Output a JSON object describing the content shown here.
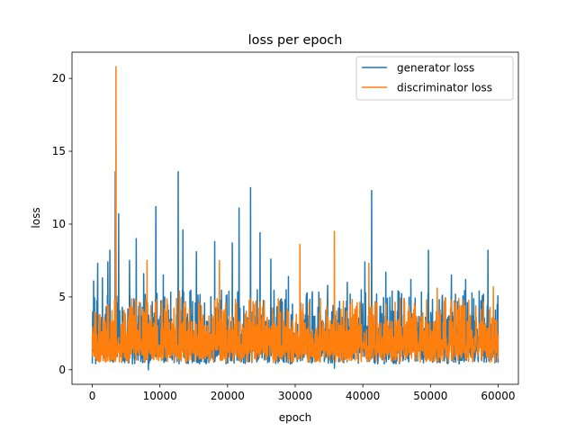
{
  "chart_data": {
    "type": "line",
    "title": "loss per epoch",
    "xlabel": "epoch",
    "ylabel": "loss",
    "xlim": [
      -3000,
      63000
    ],
    "ylim": [
      -1.0,
      21.8
    ],
    "xticks": [
      0,
      10000,
      20000,
      30000,
      40000,
      50000,
      60000
    ],
    "yticks": [
      0,
      5,
      10,
      15,
      20
    ],
    "legend_position": "top-right",
    "grid": false,
    "series": [
      {
        "name": "generator loss",
        "color": "#1f77b4",
        "base_range": [
          0.4,
          3.8
        ],
        "peaks": [
          {
            "x": 200,
            "y": 6.1
          },
          {
            "x": 800,
            "y": 7.3
          },
          {
            "x": 1500,
            "y": 6.3
          },
          {
            "x": 2300,
            "y": 7.4
          },
          {
            "x": 2600,
            "y": 8.2
          },
          {
            "x": 3400,
            "y": 13.6
          },
          {
            "x": 3900,
            "y": 10.7
          },
          {
            "x": 5500,
            "y": 7.5
          },
          {
            "x": 6500,
            "y": 9.0
          },
          {
            "x": 7600,
            "y": 6.6
          },
          {
            "x": 9400,
            "y": 11.2
          },
          {
            "x": 10500,
            "y": 6.5
          },
          {
            "x": 12700,
            "y": 13.6
          },
          {
            "x": 13400,
            "y": 9.6
          },
          {
            "x": 15400,
            "y": 8.1
          },
          {
            "x": 18100,
            "y": 8.8
          },
          {
            "x": 20700,
            "y": 8.7
          },
          {
            "x": 21700,
            "y": 11.1
          },
          {
            "x": 23400,
            "y": 12.5
          },
          {
            "x": 24800,
            "y": 9.4
          },
          {
            "x": 26400,
            "y": 7.6
          },
          {
            "x": 29000,
            "y": 6.4
          },
          {
            "x": 34800,
            "y": 5.8
          },
          {
            "x": 37700,
            "y": 6.0
          },
          {
            "x": 40300,
            "y": 7.4
          },
          {
            "x": 41300,
            "y": 12.3
          },
          {
            "x": 43400,
            "y": 6.7
          },
          {
            "x": 47100,
            "y": 6.2
          },
          {
            "x": 49700,
            "y": 8.2
          },
          {
            "x": 53100,
            "y": 6.5
          },
          {
            "x": 55200,
            "y": 6.2
          },
          {
            "x": 57200,
            "y": 5.4
          },
          {
            "x": 58500,
            "y": 8.2
          },
          {
            "x": 59600,
            "y": 4.1
          }
        ],
        "dips": [
          {
            "x": 8300,
            "y": 0.0
          },
          {
            "x": 35800,
            "y": 0.1
          }
        ]
      },
      {
        "name": "discriminator loss",
        "color": "#ff7f0e",
        "base_range": [
          0.5,
          3.4
        ],
        "peaks": [
          {
            "x": 3500,
            "y": 20.8
          },
          {
            "x": 8100,
            "y": 7.5
          },
          {
            "x": 12900,
            "y": 5.4
          },
          {
            "x": 18800,
            "y": 7.5
          },
          {
            "x": 30700,
            "y": 8.6
          },
          {
            "x": 35800,
            "y": 9.5
          },
          {
            "x": 40900,
            "y": 7.3
          },
          {
            "x": 51000,
            "y": 5.6
          },
          {
            "x": 59300,
            "y": 5.7
          }
        ],
        "dips": []
      }
    ]
  }
}
